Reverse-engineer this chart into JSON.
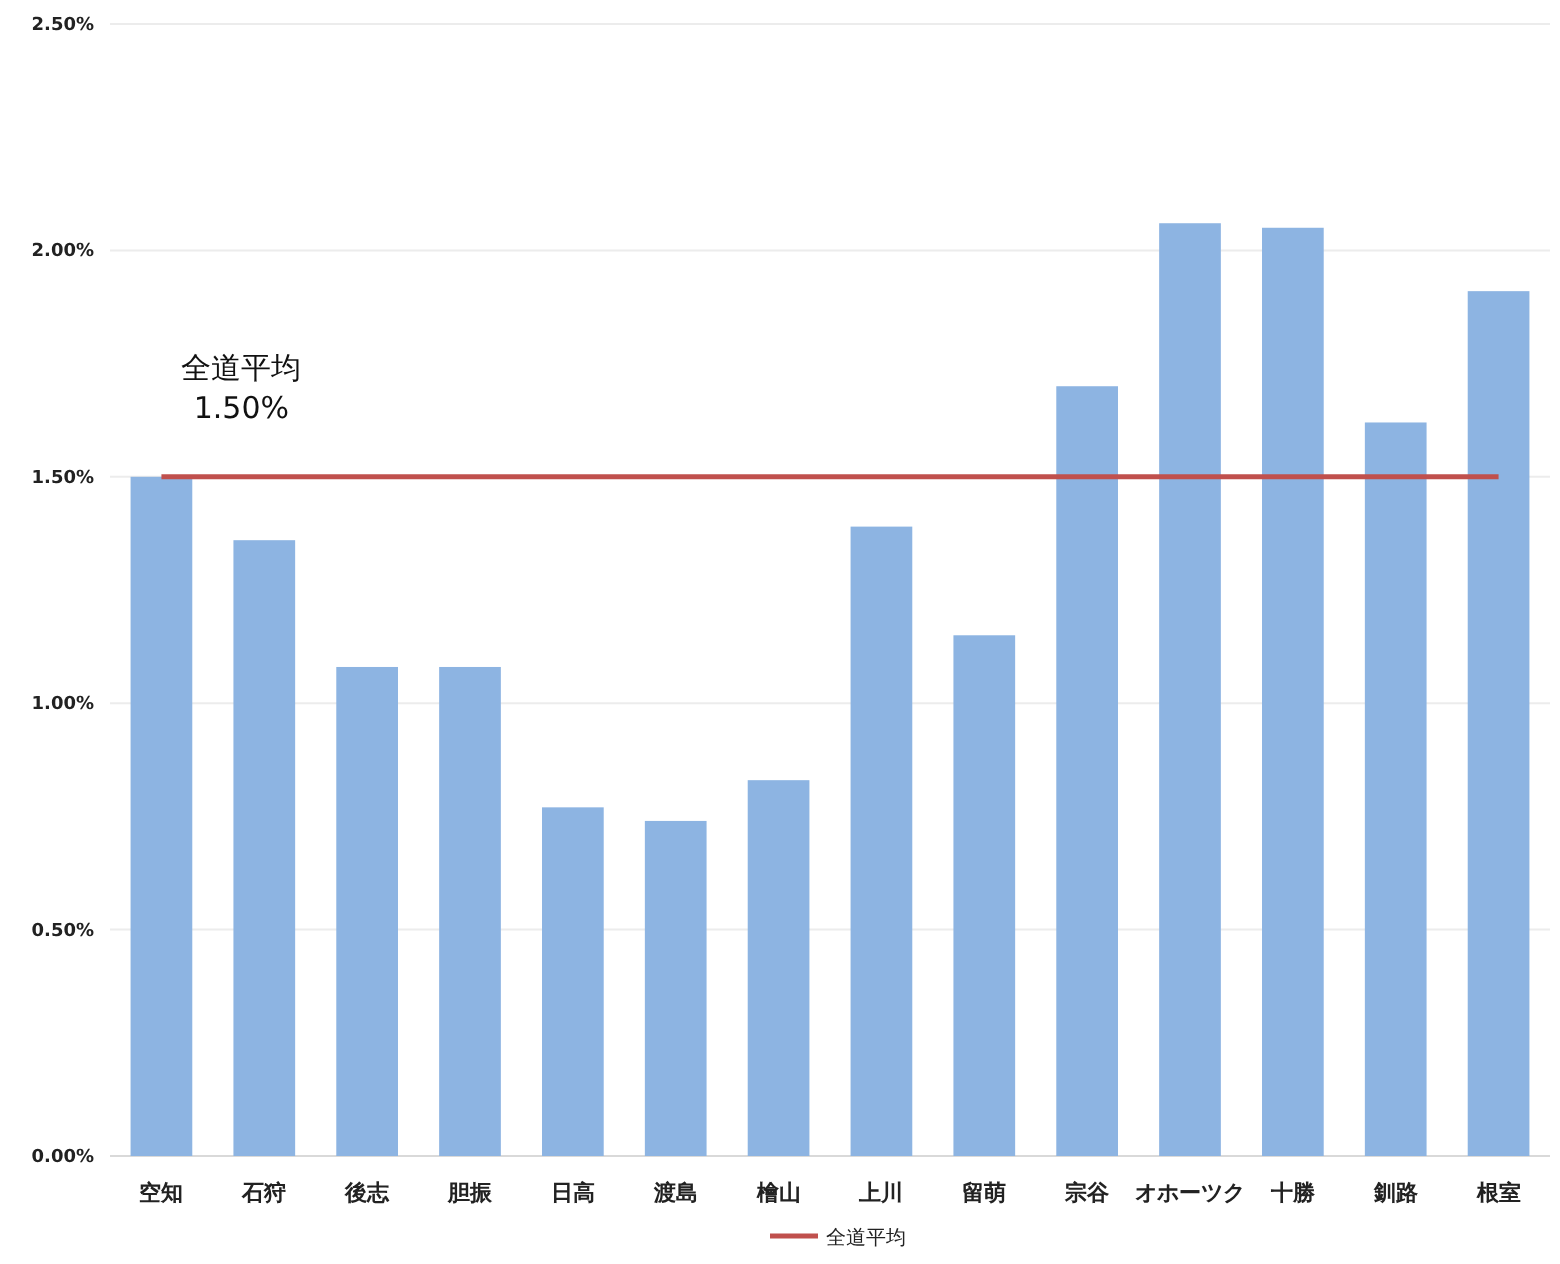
{
  "chart_data": {
    "type": "bar",
    "categories": [
      "空知",
      "石狩",
      "後志",
      "胆振",
      "日高",
      "渡島",
      "檜山",
      "上川",
      "留萌",
      "宗谷",
      "オホーツク",
      "十勝",
      "釧路",
      "根室"
    ],
    "series": [
      {
        "type": "bar",
        "color": "#8db4e2",
        "values": [
          1.5,
          1.36,
          1.08,
          1.08,
          0.77,
          0.74,
          0.83,
          1.39,
          1.15,
          1.7,
          2.06,
          2.05,
          1.62,
          1.91
        ]
      },
      {
        "type": "line",
        "name": "全道平均",
        "color": "#c0504d",
        "values": [
          1.5,
          1.5,
          1.5,
          1.5,
          1.5,
          1.5,
          1.5,
          1.5,
          1.5,
          1.5,
          1.5,
          1.5,
          1.5,
          1.5
        ]
      }
    ],
    "annotations": [
      {
        "text": "全道平均 1.50%",
        "x": "空知",
        "y": 1.5
      }
    ],
    "ylim": [
      0,
      2.5
    ],
    "yticks": [
      {
        "value": 0,
        "label": "0.00%"
      },
      {
        "value": 0.5,
        "label": "0.50%"
      },
      {
        "value": 1,
        "label": "1.00%"
      },
      {
        "value": 1.5,
        "label": "1.50%"
      },
      {
        "value": 2,
        "label": "2.00%"
      },
      {
        "value": 2.5,
        "label": "2.50%"
      }
    ],
    "grid": "y",
    "legend": "bottom",
    "marker": "none",
    "line_style": "solid"
  }
}
